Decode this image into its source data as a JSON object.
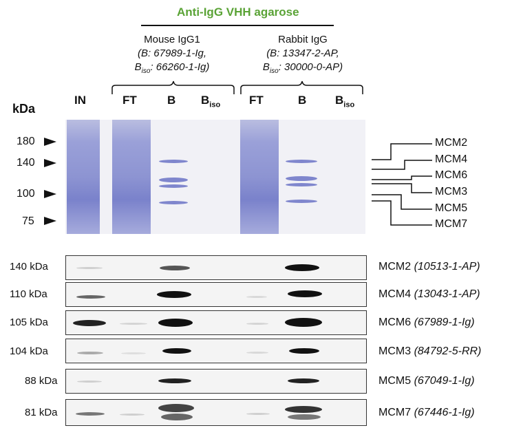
{
  "header": {
    "title": "Anti-IgG VHH agarose",
    "mouse": {
      "name": "Mouse IgG1",
      "line1": "(B: 67989-1-Ig,",
      "line2_prefix": "B",
      "line2_sub": "iso",
      "line2_rest": ": 66260-1-Ig)"
    },
    "rabbit": {
      "name": "Rabbit IgG",
      "line1": "(B: 13347-2-AP,",
      "line2_prefix": "B",
      "line2_sub": "iso",
      "line2_rest": ": 30000-0-AP)"
    }
  },
  "lanes": {
    "kda": "kDa",
    "in": "IN",
    "ft1": "FT",
    "b1": "B",
    "biso1": "B",
    "biso1_sub": "iso",
    "ft2": "FT",
    "b2": "B",
    "biso2": "B",
    "biso2_sub": "iso"
  },
  "markers": [
    "180",
    "140",
    "100",
    "75"
  ],
  "gel_labels": [
    "MCM2",
    "MCM4",
    "MCM6",
    "MCM3",
    "MCM5",
    "MCM7"
  ],
  "blots": [
    {
      "kda": "140 kDa",
      "protein": "MCM2",
      "antibody": "(10513-1-AP)"
    },
    {
      "kda": "110 kDa",
      "protein": "MCM4",
      "antibody": "(13043-1-AP)"
    },
    {
      "kda": "105 kDa",
      "protein": "MCM6",
      "antibody": "(67989-1-Ig)"
    },
    {
      "kda": "104 kDa",
      "protein": "MCM3",
      "antibody": "(84792-5-RR)"
    },
    {
      "kda": "88 kDa",
      "protein": "MCM5",
      "antibody": "(67049-1-Ig)"
    },
    {
      "kda": "81 kDa",
      "protein": "MCM7",
      "antibody": "(67446-1-Ig)"
    }
  ],
  "colors": {
    "title": "#5aa336",
    "gel_stain": "#8d94d2",
    "band": "#111111"
  }
}
